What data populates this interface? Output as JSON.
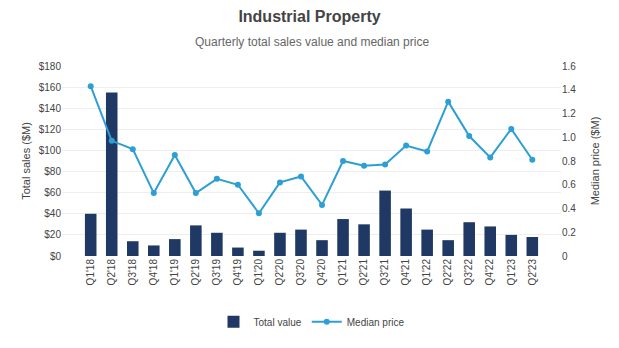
{
  "chart_data": {
    "type": "bar",
    "title": "Industrial Property",
    "subtitle": "Quarterly total sales value and median price",
    "categories": [
      "Q1'18",
      "Q2'18",
      "Q3'18",
      "Q4'18",
      "Q1'19",
      "Q2'19",
      "Q3'19",
      "Q4'19",
      "Q1'20",
      "Q2'20",
      "Q3'20",
      "Q4'20",
      "Q1'21",
      "Q2'21",
      "Q3'21",
      "Q4'21",
      "Q1'22",
      "Q2'22",
      "Q3'22",
      "Q4'22",
      "Q1'23",
      "Q2'23"
    ],
    "series": [
      {
        "name": "Total value",
        "type": "bar",
        "color": "#1f3864",
        "values": [
          40,
          155,
          14,
          10,
          16,
          29,
          22,
          8,
          5,
          22,
          25,
          15,
          35,
          30,
          62,
          45,
          25,
          15,
          32,
          28,
          20,
          18
        ]
      },
      {
        "name": "Median price",
        "type": "line",
        "color": "#2e9fd4",
        "marker": "circle",
        "line_style": "solid",
        "axis": "y2",
        "values": [
          1.43,
          0.97,
          0.9,
          0.53,
          0.85,
          0.53,
          0.65,
          0.6,
          0.36,
          0.62,
          0.67,
          0.43,
          0.8,
          0.76,
          0.77,
          0.93,
          0.88,
          1.3,
          1.01,
          0.83,
          1.07,
          0.81
        ]
      }
    ],
    "ylabel": "Total sales ($M)",
    "y2label": "Median price ($M)",
    "ylim": [
      0,
      180
    ],
    "yticks": [
      {
        "value": 0,
        "label": "$0"
      },
      {
        "value": 20,
        "label": "$20"
      },
      {
        "value": 40,
        "label": "$40"
      },
      {
        "value": 60,
        "label": "$60"
      },
      {
        "value": 80,
        "label": "$80"
      },
      {
        "value": 100,
        "label": "$100"
      },
      {
        "value": 120,
        "label": "$120"
      },
      {
        "value": 140,
        "label": "$140"
      },
      {
        "value": 160,
        "label": "$160"
      },
      {
        "value": 180,
        "label": "$180"
      }
    ],
    "y2lim": [
      0,
      1.6
    ],
    "y2ticks": [
      0,
      0.2,
      0.4,
      0.6,
      0.8,
      {
        "value": 1.0,
        "label": "1.0"
      },
      1.2,
      1.4,
      1.6
    ],
    "grid": true,
    "legend": "bottom"
  }
}
